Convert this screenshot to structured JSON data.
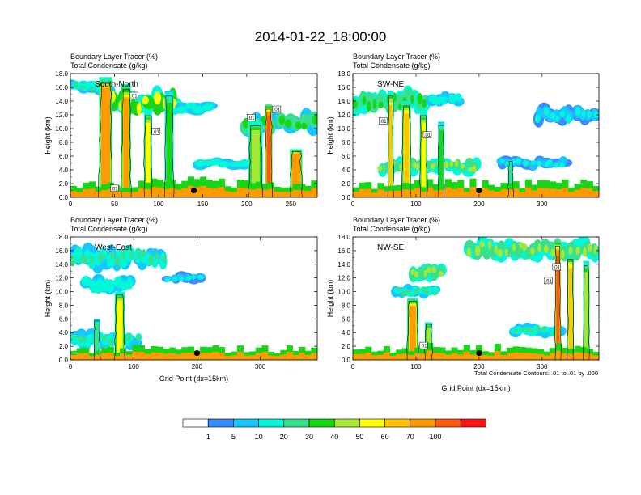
{
  "title": "2014-01-22_18:00:00",
  "footnote": "Total Condensate Contours: .01 to .01 by .000",
  "colorbar": {
    "levels": [
      "1",
      "5",
      "10",
      "20",
      "30",
      "40",
      "50",
      "60",
      "70",
      "100"
    ],
    "colors": [
      "#ffffff",
      "#3a8cff",
      "#16c8ff",
      "#00f8d8",
      "#36e08c",
      "#16d616",
      "#a6e636",
      "#ffff00",
      "#ffc400",
      "#ff9a00",
      "#ff5a10",
      "#ff1414"
    ]
  },
  "chart_data": [
    {
      "type": "heatmap",
      "label": "South-North",
      "subtitle1": "Boundary Layer Tracer   (%)",
      "subtitle2": "Total Condensate   (g/kg)",
      "ylabel": "Height (km)",
      "xlabel": "",
      "xlim": [
        0,
        280
      ],
      "ylim": [
        0,
        18
      ],
      "xticks": [
        "0",
        "50",
        "100",
        "150",
        "200",
        "250"
      ],
      "yticks": [
        "0.0",
        "2.0",
        "4.0",
        "6.0",
        "8.0",
        "10.0",
        "12.0",
        "14.0",
        "16.0",
        "18.0"
      ],
      "marker": [
        140,
        1.0
      ],
      "contour_labels": [
        {
          "text": ".01",
          "x": 50,
          "y": 1.2
        },
        {
          "text": ".01",
          "x": 72,
          "y": 14.7
        },
        {
          "text": ".01",
          "x": 97,
          "y": 9.5
        },
        {
          "text": ".01",
          "x": 205,
          "y": 11.5
        },
        {
          "text": ".01",
          "x": 234,
          "y": 12.7
        }
      ],
      "plumes": [
        {
          "x": 40,
          "w": 15,
          "top": 17.5,
          "v": 75
        },
        {
          "x": 63,
          "w": 11,
          "top": 16.5,
          "v": 60
        },
        {
          "x": 88,
          "w": 9,
          "top": 12.5,
          "v": 45
        },
        {
          "x": 112,
          "w": 10,
          "top": 15.5,
          "v": 30
        },
        {
          "x": 225,
          "w": 8,
          "top": 13.5,
          "v": 90
        },
        {
          "x": 256,
          "w": 14,
          "top": 7.0,
          "v": 75
        },
        {
          "x": 210,
          "w": 16,
          "top": 11.0,
          "v": 40
        }
      ],
      "anvils": [
        {
          "x0": 0,
          "x1": 45,
          "y": 16.0,
          "t": 1.6,
          "v": 20
        },
        {
          "x0": 45,
          "x1": 120,
          "y": 13.8,
          "t": 3.0,
          "v": 40
        },
        {
          "x0": 120,
          "x1": 160,
          "y": 13.0,
          "t": 1.4,
          "v": 15
        },
        {
          "x0": 195,
          "x1": 280,
          "y": 10.8,
          "t": 2.4,
          "v": 25
        },
        {
          "x0": 140,
          "x1": 200,
          "y": 5.0,
          "t": 1.2,
          "v": 15
        }
      ],
      "boundary": {
        "top": 2.2,
        "v": 60
      }
    },
    {
      "type": "heatmap",
      "label": "SW-NE",
      "subtitle1": "Boundary Layer Tracer   (%)",
      "subtitle2": "Total Condensate   (g/kg)",
      "ylabel": "Height (km)",
      "xlabel": "",
      "xlim": [
        0,
        390
      ],
      "ylim": [
        0,
        18
      ],
      "xticks": [
        "0",
        "100",
        "200",
        "300"
      ],
      "yticks": [
        "0.0",
        "2.0",
        "4.0",
        "6.0",
        "8.0",
        "10.0",
        "12.0",
        "14.0",
        "16.0",
        "18.0"
      ],
      "marker": [
        200,
        1.0
      ],
      "contour_labels": [
        {
          "text": ".01",
          "x": 48,
          "y": 11.0
        },
        {
          "text": ".01",
          "x": 118,
          "y": 9.0
        }
      ],
      "plumes": [
        {
          "x": 60,
          "w": 9,
          "top": 15.5,
          "v": 50
        },
        {
          "x": 85,
          "w": 14,
          "top": 14.0,
          "v": 55
        },
        {
          "x": 112,
          "w": 12,
          "top": 12.5,
          "v": 45
        },
        {
          "x": 140,
          "w": 10,
          "top": 11.0,
          "v": 30
        },
        {
          "x": 250,
          "w": 8,
          "top": 5.5,
          "v": 20
        }
      ],
      "anvils": [
        {
          "x0": 0,
          "x1": 120,
          "y": 14.0,
          "t": 2.6,
          "v": 30
        },
        {
          "x0": 120,
          "x1": 170,
          "y": 14.2,
          "t": 1.4,
          "v": 15
        },
        {
          "x0": 290,
          "x1": 390,
          "y": 12.0,
          "t": 2.2,
          "v": 10
        },
        {
          "x0": 40,
          "x1": 200,
          "y": 4.5,
          "t": 1.8,
          "v": 35
        },
        {
          "x0": 230,
          "x1": 340,
          "y": 5.0,
          "t": 1.4,
          "v": 12
        }
      ],
      "boundary": {
        "top": 2.0,
        "v": 65
      }
    },
    {
      "type": "heatmap",
      "label": "West-East",
      "subtitle1": "Boundary Layer Tracer   (%)",
      "subtitle2": "Total Condensate   (g/kg)",
      "ylabel": "Height (km)",
      "xlabel": "Grid Point (dx=15km)",
      "xlim": [
        0,
        390
      ],
      "ylim": [
        0,
        18
      ],
      "xticks": [
        "0",
        "100",
        "200",
        "300"
      ],
      "yticks": [
        "0.0",
        "2.0",
        "4.0",
        "6.0",
        "8.0",
        "10.0",
        "12.0",
        "14.0",
        "16.0",
        "18.0"
      ],
      "marker": [
        200,
        1.0
      ],
      "contour_labels": [],
      "plumes": [
        {
          "x": 78,
          "w": 16,
          "top": 10.0,
          "v": 45
        },
        {
          "x": 42,
          "w": 10,
          "top": 6.0,
          "v": 20
        }
      ],
      "anvils": [
        {
          "x0": 0,
          "x1": 150,
          "y": 15.0,
          "t": 2.6,
          "v": 20
        },
        {
          "x0": 20,
          "x1": 100,
          "y": 11.0,
          "t": 2.0,
          "v": 15
        },
        {
          "x0": 0,
          "x1": 110,
          "y": 3.0,
          "t": 1.8,
          "v": 20
        },
        {
          "x0": 150,
          "x1": 210,
          "y": 12.0,
          "t": 1.2,
          "v": 10
        }
      ],
      "boundary": {
        "top": 1.6,
        "v": 60
      }
    },
    {
      "type": "heatmap",
      "label": "NW-SE",
      "subtitle1": "Boundary Layer Tracer   (%)",
      "subtitle2": "Total Condensate   (g/kg)",
      "ylabel": "Height (km)",
      "xlabel": "Grid Point (dx=15km)",
      "xlim": [
        0,
        390
      ],
      "ylim": [
        0,
        18
      ],
      "xticks": [
        "0",
        "100",
        "200",
        "300"
      ],
      "yticks": [
        "0.0",
        "2.0",
        "4.0",
        "6.0",
        "8.0",
        "10.0",
        "12.0",
        "14.0",
        "16.0",
        "18.0"
      ],
      "marker": [
        200,
        1.0
      ],
      "contour_labels": [
        {
          "text": ".01",
          "x": 112,
          "y": 2.0
        },
        {
          "text": ".01",
          "x": 310,
          "y": 11.5
        },
        {
          "text": ".01",
          "x": 323,
          "y": 13.5
        }
      ],
      "plumes": [
        {
          "x": 95,
          "w": 18,
          "top": 9.0,
          "v": 60
        },
        {
          "x": 120,
          "w": 12,
          "top": 5.5,
          "v": 35
        },
        {
          "x": 325,
          "w": 9,
          "top": 17.5,
          "v": 90
        },
        {
          "x": 345,
          "w": 10,
          "top": 15.5,
          "v": 55
        },
        {
          "x": 370,
          "w": 10,
          "top": 14.5,
          "v": 40
        }
      ],
      "anvils": [
        {
          "x0": 180,
          "x1": 390,
          "y": 16.2,
          "t": 2.4,
          "v": 35
        },
        {
          "x0": 90,
          "x1": 145,
          "y": 12.8,
          "t": 2.0,
          "v": 35
        },
        {
          "x0": 65,
          "x1": 135,
          "y": 10.0,
          "t": 1.4,
          "v": 20
        },
        {
          "x0": 250,
          "x1": 330,
          "y": 4.2,
          "t": 1.4,
          "v": 20
        }
      ],
      "boundary": {
        "top": 1.8,
        "v": 65
      }
    }
  ]
}
